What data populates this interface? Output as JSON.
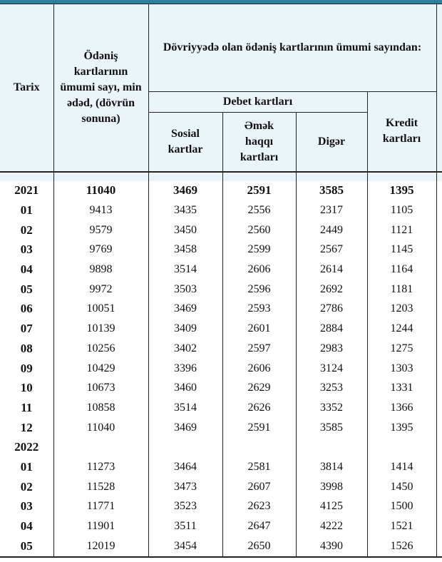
{
  "header": {
    "date": "Tarix",
    "total": "Ödəniş kartlarının ümumi sayı, min ədəd, (dövrün sonuna)",
    "group": "Dövriyyədə olan ödəniş kartlarının ümumi sayından:",
    "debit": "Debet kartları",
    "social": "Sosial kartlar",
    "salary": "Əmək haqqı kartları",
    "other": "Digər",
    "credit": "Kredit kartları"
  },
  "rows": [
    {
      "date": "2021",
      "total": "11040",
      "social": "3469",
      "salary": "2591",
      "other": "3585",
      "credit": "1395"
    },
    {
      "date": "01",
      "total": "9413",
      "social": "3435",
      "salary": "2556",
      "other": "2317",
      "credit": "1105"
    },
    {
      "date": "02",
      "total": "9579",
      "social": "3450",
      "salary": "2560",
      "other": "2449",
      "credit": "1121"
    },
    {
      "date": "03",
      "total": "9769",
      "social": "3458",
      "salary": "2599",
      "other": "2567",
      "credit": "1145"
    },
    {
      "date": "04",
      "total": "9898",
      "social": "3514",
      "salary": "2606",
      "other": "2614",
      "credit": "1164"
    },
    {
      "date": "05",
      "total": "9972",
      "social": "3503",
      "salary": "2596",
      "other": "2692",
      "credit": "1181"
    },
    {
      "date": "06",
      "total": "10051",
      "social": "3469",
      "salary": "2593",
      "other": "2786",
      "credit": "1203"
    },
    {
      "date": "07",
      "total": "10139",
      "social": "3409",
      "salary": "2601",
      "other": "2884",
      "credit": "1244"
    },
    {
      "date": "08",
      "total": "10256",
      "social": "3402",
      "salary": "2597",
      "other": "2983",
      "credit": "1275"
    },
    {
      "date": "09",
      "total": "10429",
      "social": "3396",
      "salary": "2606",
      "other": "3124",
      "credit": "1303"
    },
    {
      "date": "10",
      "total": "10673",
      "social": "3460",
      "salary": "2629",
      "other": "3253",
      "credit": "1331"
    },
    {
      "date": "11",
      "total": "10858",
      "social": "3514",
      "salary": "2626",
      "other": "3352",
      "credit": "1366"
    },
    {
      "date": "12",
      "total": "11040",
      "social": "3469",
      "salary": "2591",
      "other": "3585",
      "credit": "1395"
    },
    {
      "date": "2022",
      "total": "",
      "social": "",
      "salary": "",
      "other": "",
      "credit": ""
    },
    {
      "date": "01",
      "total": "11273",
      "social": "3464",
      "salary": "2581",
      "other": "3814",
      "credit": "1414"
    },
    {
      "date": "02",
      "total": "11528",
      "social": "3473",
      "salary": "2607",
      "other": "3998",
      "credit": "1450"
    },
    {
      "date": "03",
      "total": "11771",
      "social": "3523",
      "salary": "2623",
      "other": "4125",
      "credit": "1500"
    },
    {
      "date": "04",
      "total": "11901",
      "social": "3511",
      "salary": "2647",
      "other": "4222",
      "credit": "1521"
    },
    {
      "date": "05",
      "total": "12019",
      "social": "3454",
      "salary": "2650",
      "other": "4390",
      "credit": "1526"
    }
  ]
}
